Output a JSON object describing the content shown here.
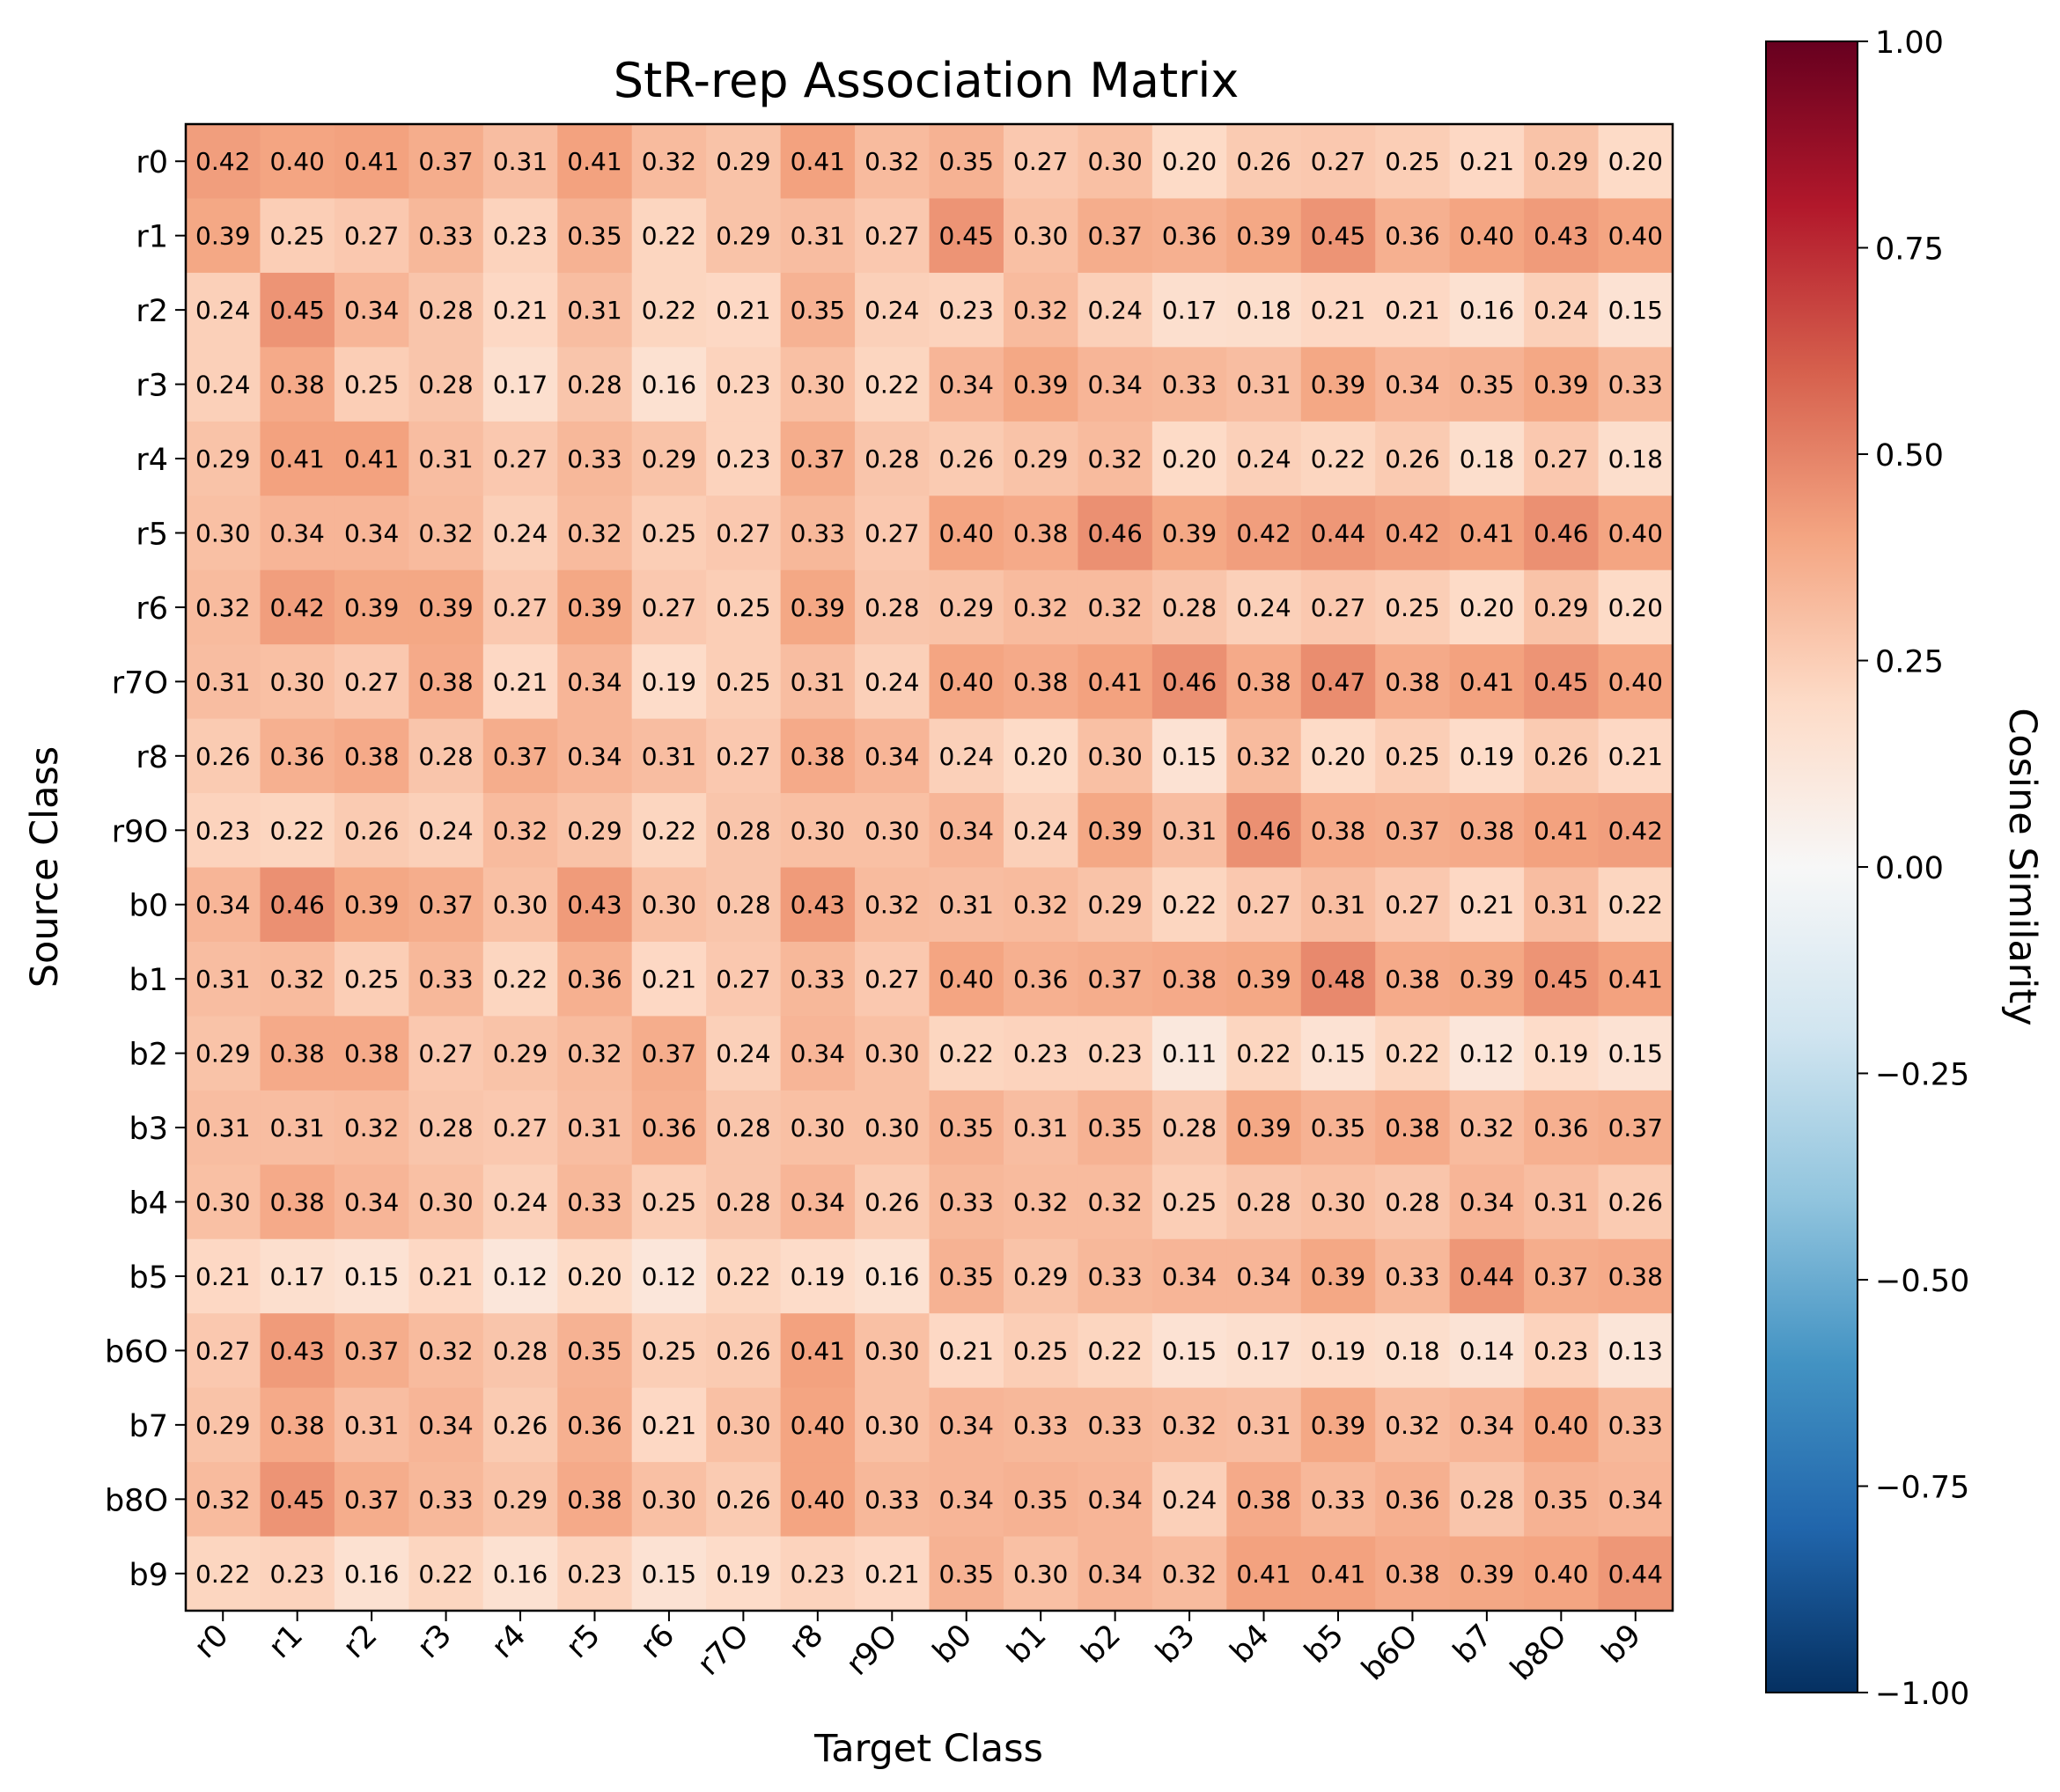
{
  "chart_data": {
    "type": "heatmap",
    "title": "StR-rep Association Matrix",
    "xlabel": "Target Class",
    "ylabel": "Source Class",
    "colorbar_label": "Cosine Similarity",
    "colormap": "RdBu_r",
    "vmin": -1.0,
    "vmax": 1.0,
    "colorbar_ticks": [
      "1.00",
      "0.75",
      "0.50",
      "0.25",
      "0.00",
      "−0.25",
      "−0.50",
      "−0.75",
      "−1.00"
    ],
    "colorbar_tick_values": [
      1.0,
      0.75,
      0.5,
      0.25,
      0.0,
      -0.25,
      -0.5,
      -0.75,
      -1.0
    ],
    "x_categories": [
      "r0",
      "r1",
      "r2",
      "r3",
      "r4",
      "r5",
      "r6",
      "r7O",
      "r8",
      "r9O",
      "b0",
      "b1",
      "b2",
      "b3",
      "b4",
      "b5",
      "b6O",
      "b7",
      "b8O",
      "b9"
    ],
    "y_categories": [
      "r0",
      "r1",
      "r2",
      "r3",
      "r4",
      "r5",
      "r6",
      "r7O",
      "r8",
      "r9O",
      "b0",
      "b1",
      "b2",
      "b3",
      "b4",
      "b5",
      "b6O",
      "b7",
      "b8O",
      "b9"
    ],
    "values": [
      [
        0.42,
        0.4,
        0.41,
        0.37,
        0.31,
        0.41,
        0.32,
        0.29,
        0.41,
        0.32,
        0.35,
        0.27,
        0.3,
        0.2,
        0.26,
        0.27,
        0.25,
        0.21,
        0.29,
        0.2
      ],
      [
        0.39,
        0.25,
        0.27,
        0.33,
        0.23,
        0.35,
        0.22,
        0.29,
        0.31,
        0.27,
        0.45,
        0.3,
        0.37,
        0.36,
        0.39,
        0.45,
        0.36,
        0.4,
        0.43,
        0.4
      ],
      [
        0.24,
        0.45,
        0.34,
        0.28,
        0.21,
        0.31,
        0.22,
        0.21,
        0.35,
        0.24,
        0.23,
        0.32,
        0.24,
        0.17,
        0.18,
        0.21,
        0.21,
        0.16,
        0.24,
        0.15
      ],
      [
        0.24,
        0.38,
        0.25,
        0.28,
        0.17,
        0.28,
        0.16,
        0.23,
        0.3,
        0.22,
        0.34,
        0.39,
        0.34,
        0.33,
        0.31,
        0.39,
        0.34,
        0.35,
        0.39,
        0.33
      ],
      [
        0.29,
        0.41,
        0.41,
        0.31,
        0.27,
        0.33,
        0.29,
        0.23,
        0.37,
        0.28,
        0.26,
        0.29,
        0.32,
        0.2,
        0.24,
        0.22,
        0.26,
        0.18,
        0.27,
        0.18
      ],
      [
        0.3,
        0.34,
        0.34,
        0.32,
        0.24,
        0.32,
        0.25,
        0.27,
        0.33,
        0.27,
        0.4,
        0.38,
        0.46,
        0.39,
        0.42,
        0.44,
        0.42,
        0.41,
        0.46,
        0.4
      ],
      [
        0.32,
        0.42,
        0.39,
        0.39,
        0.27,
        0.39,
        0.27,
        0.25,
        0.39,
        0.28,
        0.29,
        0.32,
        0.32,
        0.28,
        0.24,
        0.27,
        0.25,
        0.2,
        0.29,
        0.2
      ],
      [
        0.31,
        0.3,
        0.27,
        0.38,
        0.21,
        0.34,
        0.19,
        0.25,
        0.31,
        0.24,
        0.4,
        0.38,
        0.41,
        0.46,
        0.38,
        0.47,
        0.38,
        0.41,
        0.45,
        0.4
      ],
      [
        0.26,
        0.36,
        0.38,
        0.28,
        0.37,
        0.34,
        0.31,
        0.27,
        0.38,
        0.34,
        0.24,
        0.2,
        0.3,
        0.15,
        0.32,
        0.2,
        0.25,
        0.19,
        0.26,
        0.21
      ],
      [
        0.23,
        0.22,
        0.26,
        0.24,
        0.32,
        0.29,
        0.22,
        0.28,
        0.3,
        0.3,
        0.34,
        0.24,
        0.39,
        0.31,
        0.46,
        0.38,
        0.37,
        0.38,
        0.41,
        0.42
      ],
      [
        0.34,
        0.46,
        0.39,
        0.37,
        0.3,
        0.43,
        0.3,
        0.28,
        0.43,
        0.32,
        0.31,
        0.32,
        0.29,
        0.22,
        0.27,
        0.31,
        0.27,
        0.21,
        0.31,
        0.22
      ],
      [
        0.31,
        0.32,
        0.25,
        0.33,
        0.22,
        0.36,
        0.21,
        0.27,
        0.33,
        0.27,
        0.4,
        0.36,
        0.37,
        0.38,
        0.39,
        0.48,
        0.38,
        0.39,
        0.45,
        0.41
      ],
      [
        0.29,
        0.38,
        0.38,
        0.27,
        0.29,
        0.32,
        0.37,
        0.24,
        0.34,
        0.3,
        0.22,
        0.23,
        0.23,
        0.11,
        0.22,
        0.15,
        0.22,
        0.12,
        0.19,
        0.15
      ],
      [
        0.31,
        0.31,
        0.32,
        0.28,
        0.27,
        0.31,
        0.36,
        0.28,
        0.3,
        0.3,
        0.35,
        0.31,
        0.35,
        0.28,
        0.39,
        0.35,
        0.38,
        0.32,
        0.36,
        0.37
      ],
      [
        0.3,
        0.38,
        0.34,
        0.3,
        0.24,
        0.33,
        0.25,
        0.28,
        0.34,
        0.26,
        0.33,
        0.32,
        0.32,
        0.25,
        0.28,
        0.3,
        0.28,
        0.34,
        0.31,
        0.26
      ],
      [
        0.21,
        0.17,
        0.15,
        0.21,
        0.12,
        0.2,
        0.12,
        0.22,
        0.19,
        0.16,
        0.35,
        0.29,
        0.33,
        0.34,
        0.34,
        0.39,
        0.33,
        0.44,
        0.37,
        0.38
      ],
      [
        0.27,
        0.43,
        0.37,
        0.32,
        0.28,
        0.35,
        0.25,
        0.26,
        0.41,
        0.3,
        0.21,
        0.25,
        0.22,
        0.15,
        0.17,
        0.19,
        0.18,
        0.14,
        0.23,
        0.13
      ],
      [
        0.29,
        0.38,
        0.31,
        0.34,
        0.26,
        0.36,
        0.21,
        0.3,
        0.4,
        0.3,
        0.34,
        0.33,
        0.33,
        0.32,
        0.31,
        0.39,
        0.32,
        0.34,
        0.4,
        0.33
      ],
      [
        0.32,
        0.45,
        0.37,
        0.33,
        0.29,
        0.38,
        0.3,
        0.26,
        0.4,
        0.33,
        0.34,
        0.35,
        0.34,
        0.24,
        0.38,
        0.33,
        0.36,
        0.28,
        0.35,
        0.34
      ],
      [
        0.22,
        0.23,
        0.16,
        0.22,
        0.16,
        0.23,
        0.15,
        0.19,
        0.23,
        0.21,
        0.35,
        0.3,
        0.34,
        0.32,
        0.41,
        0.41,
        0.38,
        0.39,
        0.4,
        0.44
      ]
    ]
  }
}
